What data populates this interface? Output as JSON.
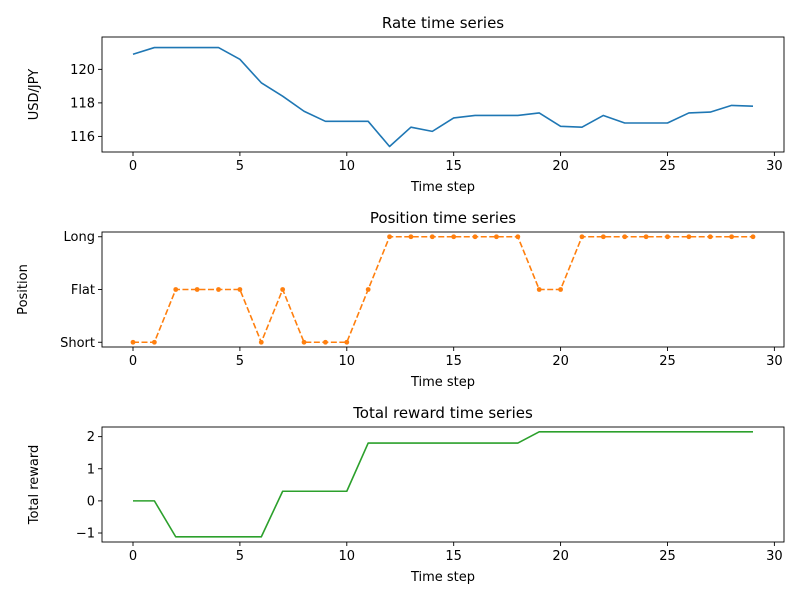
{
  "chart_data": [
    {
      "type": "line",
      "title": "Rate time series",
      "xlabel": "Time step",
      "ylabel": "USD/JPY",
      "xlim": [
        -1.45,
        30.45
      ],
      "ylim": [
        115.07,
        121.93
      ],
      "xticks": [
        0,
        5,
        10,
        15,
        20,
        25,
        30
      ],
      "yticks": [
        116,
        118,
        120
      ],
      "grid": false,
      "color": "#1f77b4",
      "line_style": "solid",
      "x": [
        0,
        1,
        2,
        3,
        4,
        5,
        6,
        7,
        8,
        9,
        10,
        11,
        12,
        13,
        14,
        15,
        16,
        17,
        18,
        19,
        20,
        21,
        22,
        23,
        24,
        25,
        26,
        27,
        28,
        29
      ],
      "values": [
        120.9,
        121.3,
        121.3,
        121.3,
        121.3,
        120.6,
        119.2,
        118.4,
        117.5,
        116.9,
        116.9,
        116.9,
        115.4,
        116.55,
        116.3,
        117.1,
        117.25,
        117.25,
        117.25,
        117.4,
        116.6,
        116.55,
        117.25,
        116.8,
        116.8,
        116.8,
        117.4,
        117.45,
        117.85,
        117.8
      ]
    },
    {
      "type": "line",
      "title": "Position time series",
      "xlabel": "Time step",
      "ylabel": "Position",
      "xlim": [
        -1.45,
        30.45
      ],
      "ylim": [
        -1.09,
        1.09
      ],
      "xticks": [
        0,
        5,
        10,
        15,
        20,
        25,
        30
      ],
      "ytick_values": [
        -1,
        0,
        1
      ],
      "ytick_labels": [
        "Short",
        "Flat",
        "Long"
      ],
      "grid": false,
      "color": "#ff7f0e",
      "line_style": "dashed",
      "markers": true,
      "x": [
        0,
        1,
        2,
        3,
        4,
        5,
        6,
        7,
        8,
        9,
        10,
        11,
        12,
        13,
        14,
        15,
        16,
        17,
        18,
        19,
        20,
        21,
        22,
        23,
        24,
        25,
        26,
        27,
        28,
        29
      ],
      "values": [
        -1,
        -1,
        0,
        0,
        0,
        0,
        -1,
        0,
        -1,
        -1,
        -1,
        0,
        1,
        1,
        1,
        1,
        1,
        1,
        1,
        0,
        0,
        1,
        1,
        1,
        1,
        1,
        1,
        1,
        1,
        1
      ]
    },
    {
      "type": "line",
      "title": "Total reward time series",
      "xlabel": "Time step",
      "ylabel": "Total reward",
      "xlim": [
        -1.45,
        30.45
      ],
      "ylim": [
        -1.28,
        2.3
      ],
      "xticks": [
        0,
        5,
        10,
        15,
        20,
        25,
        30
      ],
      "yticks": [
        -1,
        0,
        1,
        2
      ],
      "grid": false,
      "color": "#2ca02c",
      "line_style": "solid",
      "x": [
        0,
        1,
        2,
        3,
        4,
        5,
        6,
        7,
        8,
        9,
        10,
        11,
        12,
        13,
        14,
        15,
        16,
        17,
        18,
        19,
        20,
        21,
        22,
        23,
        24,
        25,
        26,
        27,
        28,
        29
      ],
      "values": [
        0,
        0,
        -1.12,
        -1.12,
        -1.12,
        -1.12,
        -1.12,
        0.3,
        0.3,
        0.3,
        0.3,
        1.8,
        1.8,
        1.8,
        1.8,
        1.8,
        1.8,
        1.8,
        1.8,
        2.15,
        2.15,
        2.15,
        2.15,
        2.15,
        2.15,
        2.15,
        2.15,
        2.15,
        2.15,
        2.15
      ]
    }
  ]
}
